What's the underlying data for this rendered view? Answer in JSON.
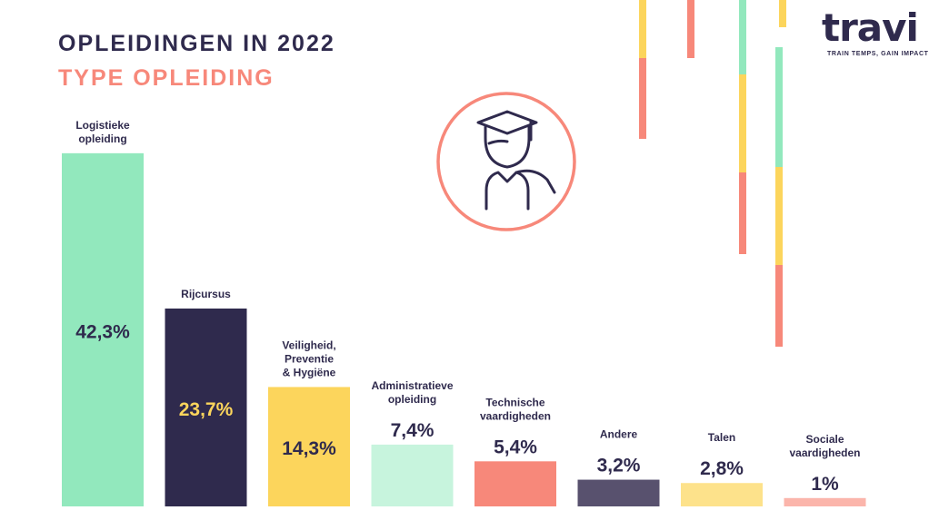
{
  "header": {
    "title": "OPLEIDINGEN IN 2022",
    "subtitle": "TYPE OPLEIDING"
  },
  "logo": {
    "text": "travi",
    "tagline": "TRAIN TEMPS, GAIN IMPACT"
  },
  "icon": "graduate-icon",
  "colors": {
    "navy": "#2f2a4d",
    "coral": "#f7887a",
    "mint": "#92e8bd",
    "yellow": "#fcd55c"
  },
  "chart_data": {
    "type": "bar",
    "title": "TYPE OPLEIDING",
    "categories": [
      [
        "Logistieke",
        "opleiding"
      ],
      [
        "Rijcursus"
      ],
      [
        "Veiligheid,",
        "Preventie",
        "& Hygiëne"
      ],
      [
        "Administratieve",
        "opleiding"
      ],
      [
        "Technische",
        "vaardigheden"
      ],
      [
        "Andere"
      ],
      [
        "Talen"
      ],
      [
        "Sociale",
        "vaardigheden"
      ]
    ],
    "values": [
      42.3,
      23.7,
      14.3,
      7.4,
      5.4,
      3.2,
      2.8,
      1
    ],
    "value_labels": [
      "42,3%",
      "23,7%",
      "14,3%",
      "7,4%",
      "5,4%",
      "3,2%",
      "2,8%",
      "1%"
    ],
    "unit": "%",
    "bar_colors": [
      "#92e8bd",
      "#2f2a4d",
      "#fcd55c",
      "#c7f4dd",
      "#f7887a",
      "#58516e",
      "#fde28b",
      "#fbb5ab"
    ],
    "value_label_colors": [
      "#2f2a4d",
      "#fcd55c",
      "#2f2a4d",
      "#2f2a4d",
      "#2f2a4d",
      "#2f2a4d",
      "#2f2a4d",
      "#2f2a4d"
    ],
    "value_label_inside": [
      true,
      true,
      true,
      false,
      false,
      false,
      false,
      false
    ],
    "grid": false,
    "legend": "none"
  }
}
